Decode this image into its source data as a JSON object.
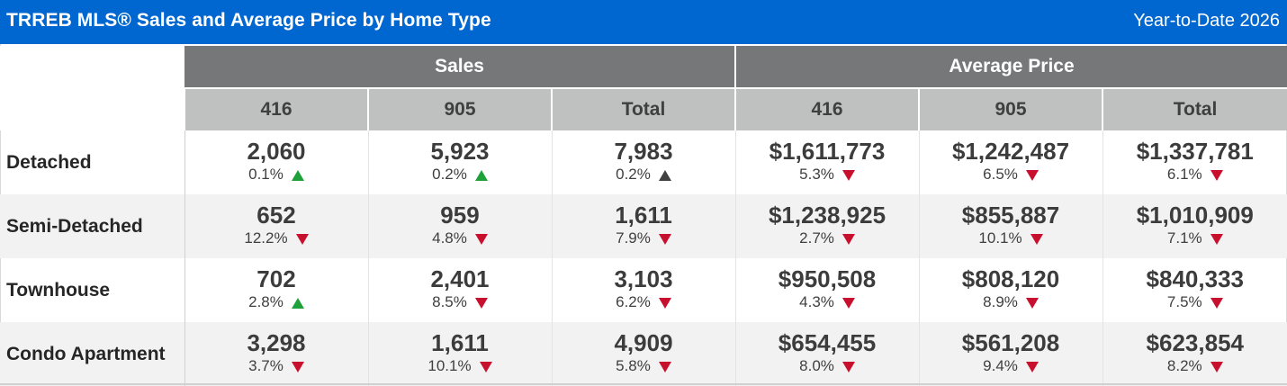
{
  "header": {
    "title": "TRREB MLS® Sales and Average Price by Home Type",
    "period": "Year-to-Date 2026"
  },
  "colors": {
    "up": "#1fa13a",
    "down": "#c8102e",
    "flat": "#404040",
    "banner": "#0066d0"
  },
  "chart_data": {
    "type": "table",
    "groups": [
      "Sales",
      "Average Price"
    ],
    "columns": [
      "416",
      "905",
      "Total",
      "416",
      "905",
      "Total"
    ],
    "rows": [
      {
        "label": "Detached",
        "cells": [
          {
            "value": "2,060",
            "change": "0.1%",
            "dir": "up"
          },
          {
            "value": "5,923",
            "change": "0.2%",
            "dir": "up"
          },
          {
            "value": "7,983",
            "change": "0.2%",
            "dir": "flat"
          },
          {
            "value": "$1,611,773",
            "change": "5.3%",
            "dir": "down"
          },
          {
            "value": "$1,242,487",
            "change": "6.5%",
            "dir": "down"
          },
          {
            "value": "$1,337,781",
            "change": "6.1%",
            "dir": "down"
          }
        ]
      },
      {
        "label": "Semi-Detached",
        "cells": [
          {
            "value": "652",
            "change": "12.2%",
            "dir": "down"
          },
          {
            "value": "959",
            "change": "4.8%",
            "dir": "down"
          },
          {
            "value": "1,611",
            "change": "7.9%",
            "dir": "down"
          },
          {
            "value": "$1,238,925",
            "change": "2.7%",
            "dir": "down"
          },
          {
            "value": "$855,887",
            "change": "10.1%",
            "dir": "down"
          },
          {
            "value": "$1,010,909",
            "change": "7.1%",
            "dir": "down"
          }
        ]
      },
      {
        "label": "Townhouse",
        "cells": [
          {
            "value": "702",
            "change": "2.8%",
            "dir": "up"
          },
          {
            "value": "2,401",
            "change": "8.5%",
            "dir": "down"
          },
          {
            "value": "3,103",
            "change": "6.2%",
            "dir": "down"
          },
          {
            "value": "$950,508",
            "change": "4.3%",
            "dir": "down"
          },
          {
            "value": "$808,120",
            "change": "8.9%",
            "dir": "down"
          },
          {
            "value": "$840,333",
            "change": "7.5%",
            "dir": "down"
          }
        ]
      },
      {
        "label": "Condo Apartment",
        "cells": [
          {
            "value": "3,298",
            "change": "3.7%",
            "dir": "down"
          },
          {
            "value": "1,611",
            "change": "10.1%",
            "dir": "down"
          },
          {
            "value": "4,909",
            "change": "5.8%",
            "dir": "down"
          },
          {
            "value": "$654,455",
            "change": "8.0%",
            "dir": "down"
          },
          {
            "value": "$561,208",
            "change": "9.4%",
            "dir": "down"
          },
          {
            "value": "$623,854",
            "change": "8.2%",
            "dir": "down"
          }
        ]
      }
    ]
  }
}
